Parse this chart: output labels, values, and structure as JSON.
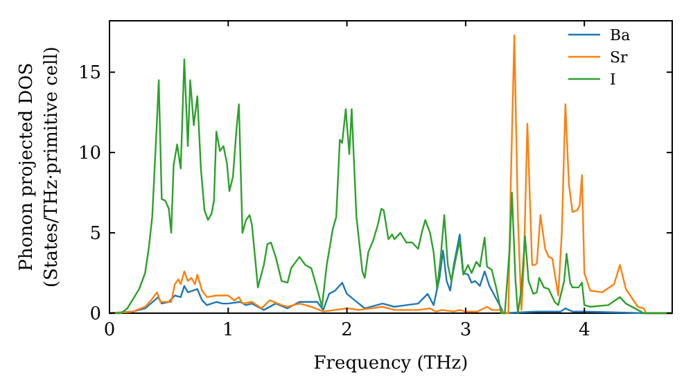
{
  "chart_data": {
    "type": "line",
    "xlabel": "Frequency (THz)",
    "ylabel": "Phonon projected DOS\n(States/THz·primitive cell)",
    "xlim": [
      0,
      4.74
    ],
    "ylim": [
      0,
      18.2
    ],
    "xticks": [
      0,
      1,
      2,
      3,
      4
    ],
    "yticks": [
      0,
      5,
      10,
      15
    ],
    "grid": false,
    "legend": "top right",
    "marker": "none",
    "line_style": "solid",
    "series": [
      {
        "name": "Ba",
        "color": "#1f77b4",
        "x": [
          0,
          0.2,
          0.3,
          0.38,
          0.41,
          0.44,
          0.5,
          0.55,
          0.6,
          0.63,
          0.66,
          0.7,
          0.74,
          0.78,
          0.82,
          0.9,
          0.95,
          1.0,
          1.1,
          1.15,
          1.2,
          1.3,
          1.4,
          1.5,
          1.6,
          1.7,
          1.75,
          1.8,
          1.85,
          1.9,
          1.96,
          2.0,
          2.05,
          2.1,
          2.15,
          2.3,
          2.4,
          2.5,
          2.6,
          2.68,
          2.73,
          2.78,
          2.81,
          2.84,
          2.87,
          2.9,
          2.95,
          2.98,
          3.02,
          3.05,
          3.08,
          3.12,
          3.16,
          3.2,
          3.25,
          3.3,
          3.32,
          3.6,
          3.8,
          3.84,
          3.9,
          4.0,
          4.5,
          4.74
        ],
        "values": [
          0,
          0.1,
          0.3,
          0.8,
          1.0,
          0.6,
          0.7,
          1.1,
          1.0,
          1.7,
          1.3,
          1.4,
          1.5,
          0.8,
          0.5,
          0.7,
          0.6,
          0.6,
          0.7,
          0.5,
          0.6,
          0.2,
          0.6,
          0.3,
          0.7,
          0.7,
          0.7,
          0.2,
          1.2,
          1.4,
          1.9,
          1.2,
          0.9,
          0.6,
          0.3,
          0.6,
          0.4,
          0.5,
          0.6,
          1.2,
          0.5,
          2.2,
          3.9,
          2.0,
          1.4,
          3.0,
          4.9,
          2.5,
          2.4,
          1.9,
          2.0,
          1.7,
          2.6,
          1.7,
          1.0,
          0.3,
          0,
          0.1,
          0.1,
          0.3,
          0.1,
          0.1,
          0,
          0
        ]
      },
      {
        "name": "Sr",
        "color": "#ff7f0e",
        "x": [
          0,
          0.2,
          0.3,
          0.35,
          0.4,
          0.43,
          0.47,
          0.52,
          0.55,
          0.58,
          0.6,
          0.63,
          0.66,
          0.69,
          0.72,
          0.74,
          0.78,
          0.82,
          0.9,
          1.0,
          1.05,
          1.09,
          1.12,
          1.2,
          1.28,
          1.35,
          1.45,
          1.5,
          1.6,
          1.7,
          1.8,
          1.9,
          2.0,
          2.1,
          2.3,
          2.4,
          2.6,
          2.7,
          2.75,
          2.8,
          2.9,
          2.95,
          3.0,
          3.1,
          3.18,
          3.22,
          3.3,
          3.32,
          3.36,
          3.38,
          3.41,
          3.44,
          3.47,
          3.49,
          3.52,
          3.56,
          3.58,
          3.6,
          3.63,
          3.67,
          3.7,
          3.73,
          3.78,
          3.81,
          3.84,
          3.87,
          3.9,
          3.94,
          3.96,
          3.98,
          4.0,
          4.05,
          4.15,
          4.25,
          4.3,
          4.35,
          4.45,
          4.5,
          4.52,
          4.74
        ],
        "values": [
          0,
          0.1,
          0.4,
          0.8,
          1.3,
          0.7,
          0.7,
          0.7,
          1.8,
          2.1,
          1.8,
          2.6,
          2.0,
          2.2,
          1.8,
          2.4,
          1.4,
          1.0,
          1.1,
          1.1,
          0.8,
          1.0,
          0.6,
          0.7,
          0.3,
          0.8,
          0.5,
          0.4,
          0.6,
          0.4,
          0.1,
          0.2,
          0.3,
          0.2,
          0.4,
          0.2,
          0.2,
          0.3,
          0.1,
          0.2,
          0.1,
          0.2,
          0.1,
          0.1,
          0.4,
          0.2,
          0.2,
          0,
          0,
          8,
          17.3,
          6,
          0.2,
          3,
          11.8,
          3,
          3.0,
          3.1,
          6.1,
          4,
          3.5,
          3.4,
          1.1,
          5,
          13.0,
          8,
          6.3,
          6.4,
          6.7,
          8.6,
          2.5,
          1.4,
          1.3,
          1.8,
          3.0,
          1.5,
          0.4,
          0.3,
          0,
          0
        ]
      },
      {
        "name": "I",
        "color": "#2ca02c",
        "x": [
          0,
          0.1,
          0.15,
          0.2,
          0.25,
          0.3,
          0.33,
          0.36,
          0.38,
          0.4,
          0.415,
          0.44,
          0.47,
          0.5,
          0.52,
          0.54,
          0.57,
          0.6,
          0.63,
          0.66,
          0.68,
          0.71,
          0.74,
          0.77,
          0.8,
          0.83,
          0.86,
          0.88,
          0.9,
          0.93,
          0.96,
          0.99,
          1.01,
          1.04,
          1.07,
          1.09,
          1.12,
          1.15,
          1.18,
          1.2,
          1.25,
          1.3,
          1.33,
          1.36,
          1.4,
          1.45,
          1.5,
          1.53,
          1.6,
          1.65,
          1.7,
          1.75,
          1.79,
          1.83,
          1.88,
          1.91,
          1.94,
          1.96,
          1.99,
          2.02,
          2.04,
          2.08,
          2.13,
          2.15,
          2.18,
          2.22,
          2.26,
          2.29,
          2.31,
          2.35,
          2.38,
          2.4,
          2.45,
          2.5,
          2.55,
          2.6,
          2.63,
          2.66,
          2.7,
          2.73,
          2.76,
          2.79,
          2.82,
          2.85,
          2.88,
          2.92,
          2.95,
          2.98,
          3.02,
          3.05,
          3.09,
          3.12,
          3.16,
          3.18,
          3.22,
          3.26,
          3.3,
          3.33,
          3.37,
          3.39,
          3.42,
          3.44,
          3.47,
          3.5,
          3.53,
          3.57,
          3.6,
          3.62,
          3.66,
          3.7,
          3.75,
          3.78,
          3.83,
          3.85,
          3.88,
          3.9,
          3.95,
          3.98,
          4.0,
          4.05,
          4.2,
          4.3,
          4.35,
          4.45,
          4.5,
          4.74
        ],
        "values": [
          0,
          0,
          0.3,
          0.9,
          1.5,
          2.5,
          4,
          6,
          9,
          12,
          14.5,
          7.1,
          7.0,
          6.5,
          5.0,
          9.2,
          10.5,
          9.0,
          15.8,
          10.4,
          14.5,
          11.7,
          13.5,
          9,
          6.4,
          5.8,
          6.2,
          7.0,
          11.3,
          10.1,
          10.4,
          9.3,
          7.6,
          8.5,
          11.5,
          13.0,
          5.0,
          5.8,
          6.1,
          5.5,
          1.6,
          3.0,
          4.3,
          4.4,
          3.5,
          2.0,
          1.9,
          2.8,
          3.5,
          3.0,
          2.8,
          1.5,
          0.4,
          3,
          5.2,
          6,
          10.8,
          10.6,
          12.7,
          9.9,
          12.7,
          6,
          2.6,
          2.2,
          3.8,
          4.5,
          5.5,
          6.5,
          6.4,
          4.6,
          4.9,
          4.6,
          5.0,
          4.4,
          4.4,
          4.0,
          5.0,
          5.8,
          5.0,
          3.8,
          1.5,
          3.5,
          6.1,
          3.0,
          2.0,
          3.5,
          4.5,
          2.4,
          3.0,
          2.5,
          3.2,
          2.9,
          4.7,
          2.9,
          2.7,
          1.5,
          0,
          0,
          4.0,
          7.5,
          2,
          0,
          1.5,
          4.8,
          2.0,
          1.2,
          1.3,
          2.2,
          1.6,
          1.5,
          0.7,
          0.5,
          2.0,
          3.7,
          1.9,
          1.6,
          1.6,
          1.9,
          0.5,
          0.4,
          0.5,
          1.0,
          0.6,
          0.2,
          0,
          0
        ]
      }
    ]
  }
}
